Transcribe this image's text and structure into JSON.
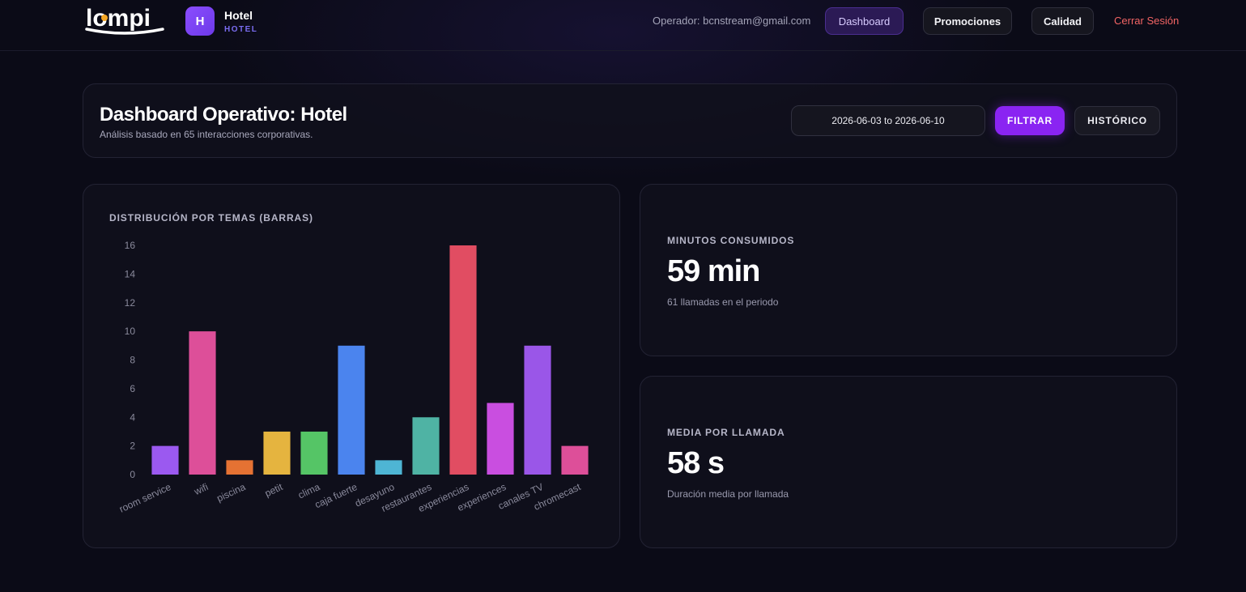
{
  "brand": {
    "logo_text": "lompi"
  },
  "hotel": {
    "initial": "H",
    "name": "Hotel",
    "sub": "HOTEL"
  },
  "nav": {
    "operator": "Operador: bcnstream@gmail.com",
    "items": [
      {
        "label": "Dashboard",
        "active": true
      },
      {
        "label": "Promociones",
        "active": false
      },
      {
        "label": "Calidad",
        "active": false
      }
    ],
    "logout": "Cerrar Sesión"
  },
  "header": {
    "title": "Dashboard Operativo: Hotel",
    "subtitle": "Análisis basado en 65 interacciones corporativas.",
    "date_range": "2026-06-03 to 2026-06-10",
    "filter_label": "FILTRAR",
    "history_label": "HISTÓRICO"
  },
  "chart_card": {
    "label": "DISTRIBUCIÓN POR TEMAS (BARRAS)"
  },
  "chart_data": {
    "type": "bar",
    "categories": [
      "room service",
      "wifi",
      "piscina",
      "petit",
      "clima",
      "caja fuerte",
      "desayuno",
      "restaurantes",
      "experiencias",
      "experiences",
      "canales TV",
      "chromecast"
    ],
    "values": [
      2,
      10,
      1,
      3,
      3,
      9,
      1,
      4,
      16,
      5,
      9,
      2
    ],
    "colors": [
      "#9b59f0",
      "#dd4f99",
      "#e57233",
      "#e5b43f",
      "#55c566",
      "#4b84ee",
      "#4eb5d4",
      "#4fb3a4",
      "#e14d62",
      "#c94ee0",
      "#9a56e8",
      "#dd4f99"
    ],
    "ylim": [
      0,
      16
    ],
    "yticks": [
      0,
      2,
      4,
      6,
      8,
      10,
      12,
      14,
      16
    ]
  },
  "stats": [
    {
      "label": "MINUTOS CONSUMIDOS",
      "value": "59 min",
      "note": "61 llamadas en el periodo"
    },
    {
      "label": "MEDIA POR LLAMADA",
      "value": "58 s",
      "note": "Duración media por llamada"
    }
  ]
}
